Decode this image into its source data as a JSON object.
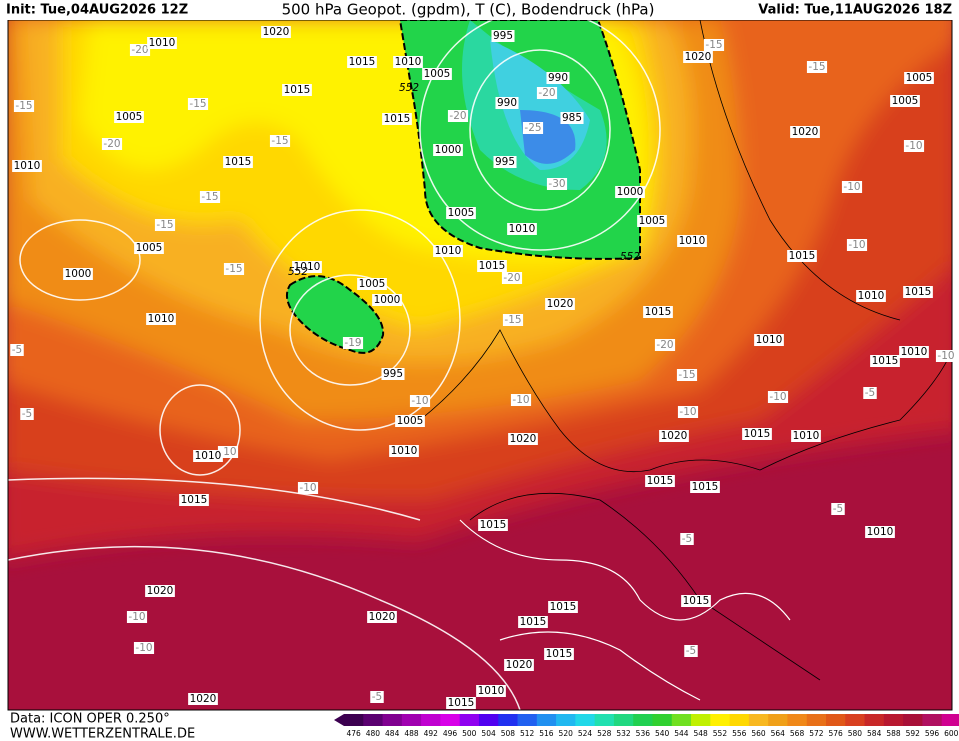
{
  "header": {
    "init": "Init: Tue,04AUG2026 12Z",
    "title": "500 hPa Geopot. (gpdm), T (C), Bodendruck (hPa)",
    "valid": "Valid: Tue,11AUG2026 18Z"
  },
  "footer": {
    "data": "Data: ICON OPER 0.250°",
    "site": "WWW.WETTERZENTRALE.DE"
  },
  "colorbar": {
    "labels": [
      476,
      480,
      484,
      488,
      492,
      496,
      500,
      504,
      508,
      512,
      516,
      520,
      524,
      528,
      532,
      536,
      540,
      544,
      548,
      552,
      556,
      560,
      564,
      568,
      572,
      576,
      580,
      584,
      588,
      592,
      596,
      600
    ]
  },
  "map": {
    "isobar_labels": [
      "1010",
      "1020",
      "1015",
      "1010",
      "1005",
      "995",
      "990",
      "990",
      "985",
      "1015",
      "1015",
      "1005",
      "1015",
      "1010",
      "1000",
      "995",
      "1000",
      "1005",
      "1005",
      "1010",
      "1010",
      "1005",
      "1000",
      "1010",
      "1015",
      "1010",
      "1005",
      "1000",
      "1020",
      "1015",
      "1010",
      "1010",
      "995",
      "1005",
      "1010",
      "1010",
      "1020",
      "1020",
      "1015",
      "1010",
      "1015",
      "1015",
      "1015",
      "1015",
      "1010",
      "1020",
      "1020",
      "1015",
      "1015",
      "1015",
      "1015",
      "1020",
      "1010",
      "1015",
      "1020",
      "1020",
      "1005",
      "1005",
      "1020",
      "1015",
      "1010",
      "1015",
      "1015",
      "1010"
    ],
    "temperature_labels": [
      "-20",
      "-15",
      "-15",
      "-15",
      "-15",
      "-20",
      "-20",
      "-25",
      "-20",
      "-15",
      "-30",
      "-10",
      "-15",
      "-15",
      "-10",
      "-15",
      "-20",
      "-10",
      "-15",
      "-20",
      "-5",
      "-10",
      "-15",
      "-10",
      "-5",
      "-10",
      "-10",
      "-5",
      "-10",
      "-10",
      "-10",
      "-5",
      "-5",
      "-10",
      "-10",
      "-5",
      "-5",
      "-19"
    ],
    "contour_labels": [
      "552",
      "552",
      "552"
    ]
  }
}
